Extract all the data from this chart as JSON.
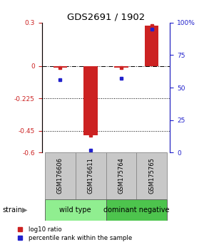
{
  "title": "GDS2691 / 1902",
  "samples": [
    "GSM176606",
    "GSM176611",
    "GSM175764",
    "GSM175765"
  ],
  "log10_ratio": [
    -0.01,
    -0.48,
    -0.01,
    0.28
  ],
  "percentile_rank": [
    56,
    2,
    57,
    95
  ],
  "groups": [
    {
      "label": "wild type",
      "samples": [
        0,
        1
      ],
      "color": "#90EE90"
    },
    {
      "label": "dominant negative",
      "samples": [
        2,
        3
      ],
      "color": "#4DC44D"
    }
  ],
  "group_label": "strain",
  "ylim_left": [
    -0.6,
    0.3
  ],
  "ylim_right": [
    0,
    100
  ],
  "yticks_left": [
    0.3,
    0,
    -0.225,
    -0.45,
    -0.6
  ],
  "yticks_right": [
    100,
    75,
    50,
    25,
    0
  ],
  "hlines": [
    0,
    -0.225,
    -0.45
  ],
  "hline_styles": [
    "dashdot",
    "dotted",
    "dotted"
  ],
  "bar_color": "#CC2222",
  "dot_color_red": "#CC2222",
  "dot_color_blue": "#2222CC",
  "left_tick_color": "#CC2222",
  "right_tick_color": "#2222CC",
  "sample_box_color": "#C8C8C8",
  "background_color": "#FFFFFF"
}
